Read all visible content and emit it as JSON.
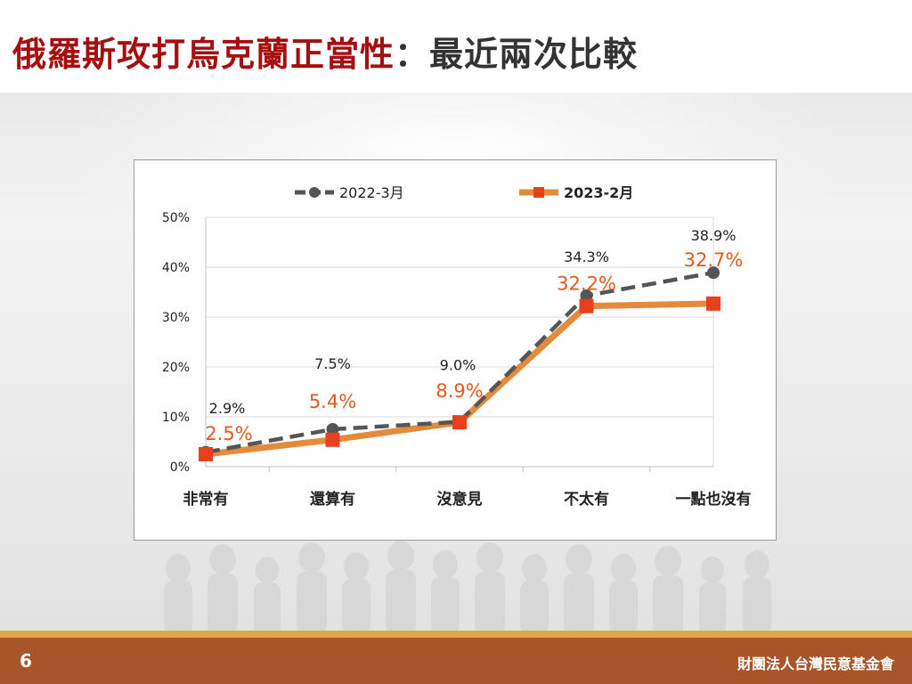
{
  "header": {
    "title_main": "俄羅斯攻打烏克蘭正當性",
    "title_sep": "：",
    "title_sub": "最近兩次比較"
  },
  "footer": {
    "page_number": "6",
    "organization": "財團法人台灣民意基金會"
  },
  "colors": {
    "title_red": "#a50f0f",
    "series_2022": "#555555",
    "series_2023": "#e48a3c",
    "marker_2023": "#e8401c",
    "label_2023": "#e15a1f",
    "footer_bg": "#a8552b",
    "footer_stripe": "#e0a64a"
  },
  "chart_data": {
    "type": "line",
    "categories": [
      "非常有",
      "還算有",
      "沒意見",
      "不太有",
      "一點也沒有"
    ],
    "y_ticks": [
      "0%",
      "10%",
      "20%",
      "30%",
      "40%",
      "50%"
    ],
    "ylim": [
      0,
      50
    ],
    "grid": true,
    "legend_position": "top",
    "series": [
      {
        "name": "2022-3月",
        "values": [
          2.9,
          7.5,
          9.0,
          34.3,
          38.9
        ],
        "labels": [
          "2.9%",
          "7.5%",
          "9.0%",
          "34.3%",
          "38.9%"
        ],
        "style": "dashed",
        "marker": "circle"
      },
      {
        "name": "2023-2月",
        "values": [
          2.5,
          5.4,
          8.9,
          32.2,
          32.7
        ],
        "labels": [
          "2.5%",
          "5.4%",
          "8.9%",
          "32.2%",
          "32.7%"
        ],
        "style": "solid",
        "marker": "square"
      }
    ]
  }
}
